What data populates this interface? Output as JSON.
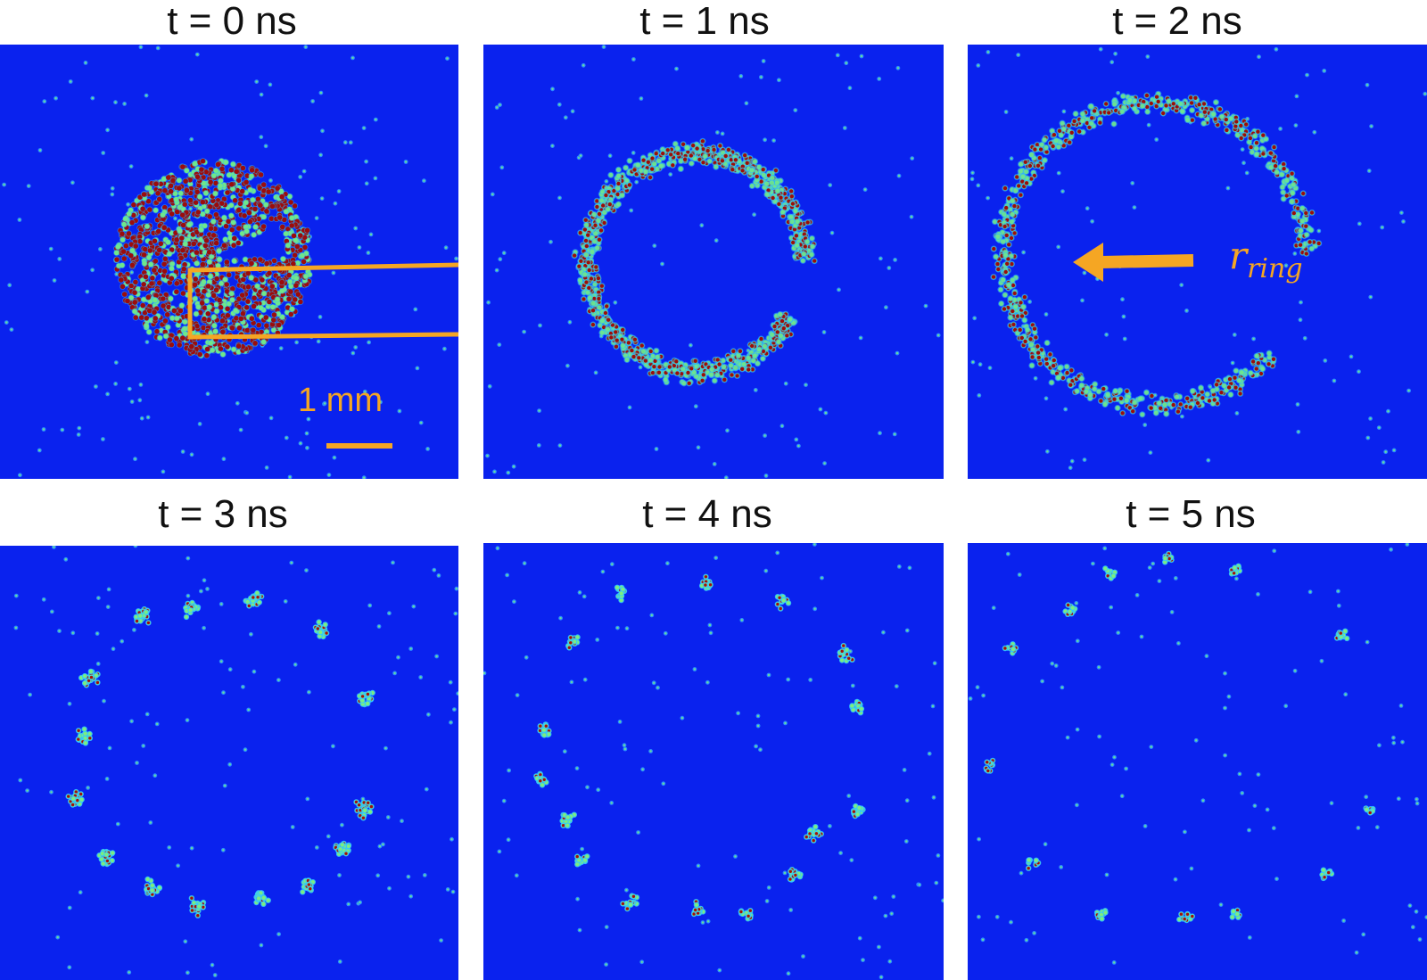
{
  "frames": [
    {
      "title": "t = 0 ns"
    },
    {
      "title": "t = 1 ns"
    },
    {
      "title": "t = 2 ns"
    },
    {
      "title": "t = 3 ns"
    },
    {
      "title": "t = 4 ns"
    },
    {
      "title": "t = 5 ns"
    }
  ],
  "annotations": {
    "scale_bar_label": "1 mm",
    "ring_symbol": "r",
    "ring_subscript": "ring"
  },
  "colors": {
    "background": "#0a22ee",
    "annotation": "#f5a623",
    "dense": "#9b0c0c",
    "mid": "#5ee08a",
    "low": "#2aa0ff"
  }
}
